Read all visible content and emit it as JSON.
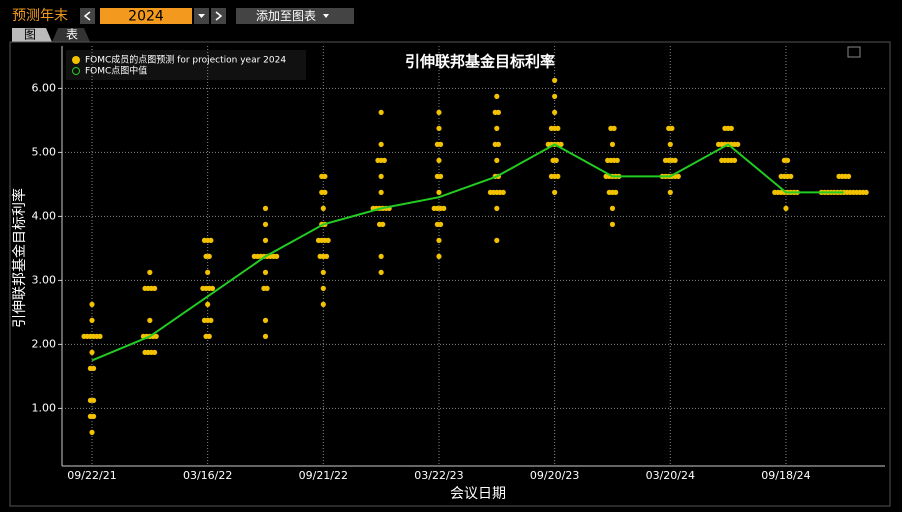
{
  "toolbar": {
    "label": "预测年末",
    "year": "2024",
    "add_button": "添加至图表"
  },
  "tabs": [
    "图",
    "表"
  ],
  "chart_data": {
    "type": "dot_plot",
    "title": "引伸联邦基金目标利率",
    "x_label": "会议日期",
    "y_label": "引伸联邦基金目标利率",
    "categories": [
      "09/22/21",
      null,
      "03/16/22",
      null,
      "09/21/22",
      null,
      "03/22/23",
      null,
      "09/20/23",
      null,
      "03/20/24",
      null,
      "09/18/24",
      null
    ],
    "ylim": [
      0.1,
      6.6
    ],
    "yticks": [
      {
        "value": 1,
        "label": "1.00"
      },
      {
        "value": 2,
        "label": "2.00"
      },
      {
        "value": 3,
        "label": "3.00"
      },
      {
        "value": 4,
        "label": "4.00"
      },
      {
        "value": 5,
        "label": "5.00"
      },
      {
        "value": 6,
        "label": "6.00"
      }
    ],
    "grid": true,
    "series": [
      {
        "name": "FOMC成员的点图预测 for projection year 2024",
        "color": "#f2c200",
        "values": [
          [
            2.625,
            2.375,
            2.125,
            2.125,
            2.125,
            2.125,
            2.125,
            2.125,
            1.875,
            1.625,
            1.625,
            1.125,
            1.125,
            0.875,
            0.875,
            0.625
          ],
          [
            3.125,
            2.875,
            2.875,
            2.875,
            2.875,
            2.375,
            2.125,
            2.125,
            2.125,
            2.125,
            2.125,
            1.875,
            1.875,
            1.875,
            1.875
          ],
          [
            3.625,
            3.625,
            3.625,
            3.375,
            3.375,
            3.125,
            2.875,
            2.875,
            2.875,
            2.875,
            2.625,
            2.375,
            2.375,
            2.375,
            2.125,
            2.125
          ],
          [
            4.125,
            3.875,
            3.625,
            3.375,
            3.375,
            3.375,
            3.375,
            3.375,
            3.375,
            3.375,
            3.375,
            3.125,
            2.875,
            2.875,
            2.375,
            2.125
          ],
          [
            4.625,
            4.625,
            4.375,
            4.375,
            4.125,
            3.875,
            3.875,
            3.625,
            3.625,
            3.625,
            3.625,
            3.375,
            3.375,
            3.375,
            3.125,
            2.875,
            2.625
          ],
          [
            5.625,
            5.125,
            4.875,
            4.875,
            4.875,
            4.625,
            4.375,
            4.125,
            4.125,
            4.125,
            4.125,
            4.125,
            4.125,
            3.875,
            3.875,
            3.375,
            3.125
          ],
          [
            5.625,
            5.375,
            5.125,
            5.125,
            4.875,
            4.625,
            4.625,
            4.375,
            4.125,
            4.125,
            4.125,
            4.125,
            3.875,
            3.875,
            3.625,
            3.375
          ],
          [
            5.875,
            5.625,
            5.625,
            5.375,
            5.125,
            5.125,
            4.875,
            4.625,
            4.625,
            4.375,
            4.375,
            4.375,
            4.375,
            4.375,
            4.125,
            3.625
          ],
          [
            6.125,
            5.875,
            5.625,
            5.375,
            5.375,
            5.375,
            5.125,
            5.125,
            5.125,
            5.125,
            5.125,
            4.875,
            4.875,
            4.625,
            4.625,
            4.625,
            4.375
          ],
          [
            5.375,
            5.375,
            5.125,
            4.875,
            4.875,
            4.875,
            4.875,
            4.625,
            4.625,
            4.625,
            4.625,
            4.625,
            4.375,
            4.375,
            4.375,
            4.125,
            3.875
          ],
          [
            5.375,
            5.375,
            5.125,
            4.875,
            4.875,
            4.875,
            4.875,
            4.625,
            4.625,
            4.625,
            4.625,
            4.625,
            4.625,
            4.375
          ],
          [
            5.375,
            5.375,
            5.375,
            5.125,
            5.125,
            5.125,
            5.125,
            5.125,
            5.125,
            5.125,
            4.875,
            4.875,
            4.875,
            4.875,
            4.875
          ],
          [
            4.875,
            4.875,
            4.625,
            4.625,
            4.625,
            4.625,
            4.375,
            4.375,
            4.375,
            4.375,
            4.375,
            4.375,
            4.375,
            4.375,
            4.125
          ],
          [
            4.625,
            4.625,
            4.625,
            4.625,
            4.375,
            4.375,
            4.375,
            4.375,
            4.375,
            4.375,
            4.375,
            4.375,
            4.375,
            4.375,
            4.375,
            4.375,
            4.375,
            4.375,
            4.375
          ]
        ]
      },
      {
        "name": "FOMC点图中值",
        "color": "#22cc22",
        "values": [
          1.75,
          2.125,
          2.75,
          3.375,
          3.875,
          4.125,
          4.3,
          4.625,
          5.125,
          4.625,
          4.625,
          5.125,
          4.375,
          4.375
        ]
      }
    ]
  }
}
